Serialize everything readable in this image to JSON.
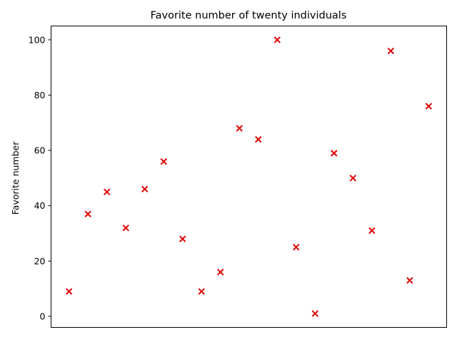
{
  "chart_data": {
    "type": "scatter",
    "title": "Favorite number of twenty individuals",
    "xlabel": "",
    "ylabel": "Favorite number",
    "x": [
      1,
      2,
      3,
      4,
      5,
      6,
      7,
      8,
      9,
      10,
      11,
      12,
      13,
      14,
      15,
      16,
      17,
      18,
      19,
      20
    ],
    "y": [
      9,
      37,
      45,
      32,
      46,
      56,
      28,
      9,
      16,
      68,
      64,
      100,
      25,
      1,
      59,
      50,
      31,
      96,
      13,
      76
    ],
    "xlim": [
      0.05,
      20.95
    ],
    "ylim": [
      -4,
      105
    ],
    "yticks": [
      0,
      20,
      40,
      60,
      80,
      100
    ],
    "xticks_visible": false,
    "grid": false,
    "marker": "x",
    "color": "#e00000"
  }
}
